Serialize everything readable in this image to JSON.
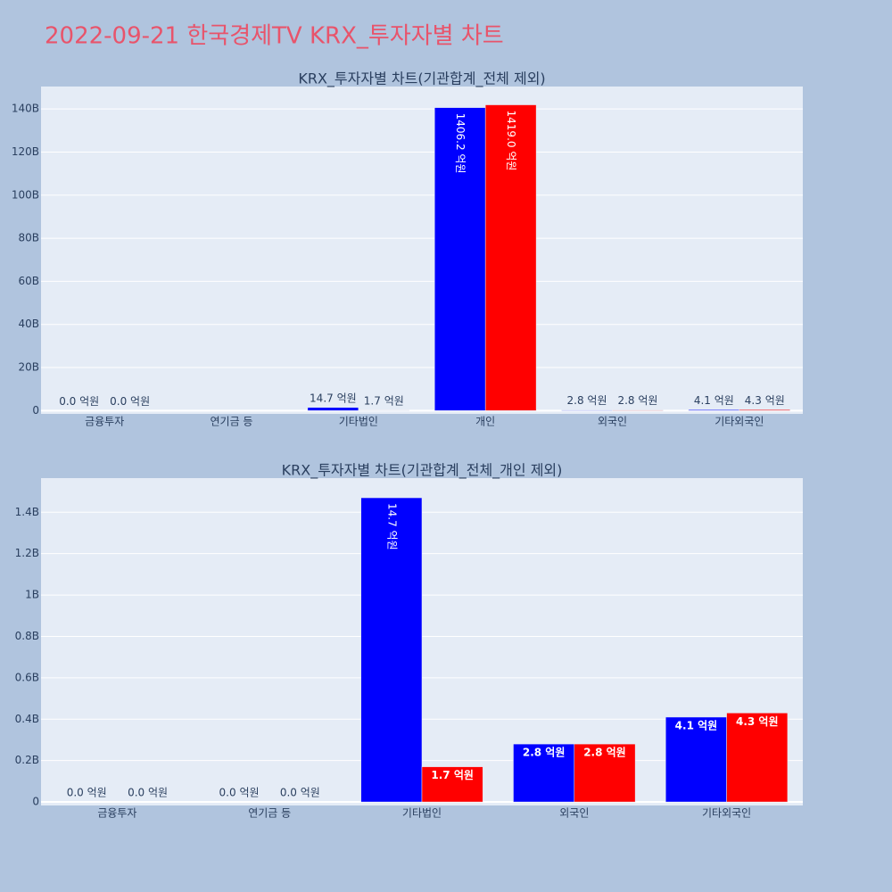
{
  "title": "2022-09-21 한국경제TV KRX_투자자별 차트",
  "chart_data": [
    {
      "type": "bar",
      "title": "KRX_투자자별 차트(기관합계_전체 제외)",
      "categories": [
        "금융투자",
        "연기금 등",
        "기타법인",
        "개인",
        "외국인",
        "기타외국인"
      ],
      "series": [
        {
          "color": "#0000ff",
          "values": [
            0,
            null,
            1470000000,
            140620000000,
            280000000,
            410000000
          ],
          "value_labels": [
            "0.0 억원",
            null,
            "14.7 억원",
            "1406.2 억원",
            "2.8 억원",
            "4.1 억원"
          ]
        },
        {
          "color": "#ff0000",
          "values": [
            0,
            null,
            170000000,
            141900000000,
            280000000,
            430000000
          ],
          "value_labels": [
            "0.0 억원",
            null,
            "1.7 억원",
            "1419.0 억원",
            "2.8 억원",
            "4.3 억원"
          ]
        }
      ],
      "ylim": [
        -1500000000,
        150400000000
      ],
      "yticks": [
        0,
        {
          "value": 20000000000,
          "label": "20B"
        },
        {
          "value": 40000000000,
          "label": "40B"
        },
        {
          "value": 60000000000,
          "label": "60B"
        },
        {
          "value": 80000000000,
          "label": "80B"
        },
        {
          "value": 100000000000,
          "label": "100B"
        },
        {
          "value": 120000000000,
          "label": "120B"
        },
        {
          "value": 140000000000,
          "label": "140B"
        }
      ],
      "grid": true
    },
    {
      "type": "bar",
      "title": "KRX_투자자별 차트(기관합계_전체_개인 제외)",
      "categories": [
        "금융투자",
        "연기금 등",
        "기타법인",
        "외국인",
        "기타외국인"
      ],
      "series": [
        {
          "color": "#0000ff",
          "values": [
            0,
            0,
            1470000000,
            280000000,
            410000000
          ],
          "value_labels": [
            "0.0 억원",
            "0.0 억원",
            "14.7 억원",
            "2.8 억원",
            "4.1 억원"
          ]
        },
        {
          "color": "#ff0000",
          "values": [
            0,
            0,
            170000000,
            280000000,
            430000000
          ],
          "value_labels": [
            "0.0 억원",
            "0.0 억원",
            "1.7 억원",
            "2.8 억원",
            "4.3 억원"
          ]
        }
      ],
      "ylim": [
        -17000000,
        1565000000
      ],
      "yticks": [
        0,
        {
          "value": 200000000,
          "label": "0.2B"
        },
        {
          "value": 400000000,
          "label": "0.4B"
        },
        {
          "value": 600000000,
          "label": "0.6B"
        },
        {
          "value": 800000000,
          "label": "0.8B"
        },
        {
          "value": 1000000000,
          "label": "1B"
        },
        {
          "value": 1200000000,
          "label": "1.2B"
        },
        {
          "value": 1400000000,
          "label": "1.4B"
        }
      ],
      "grid": true
    }
  ]
}
